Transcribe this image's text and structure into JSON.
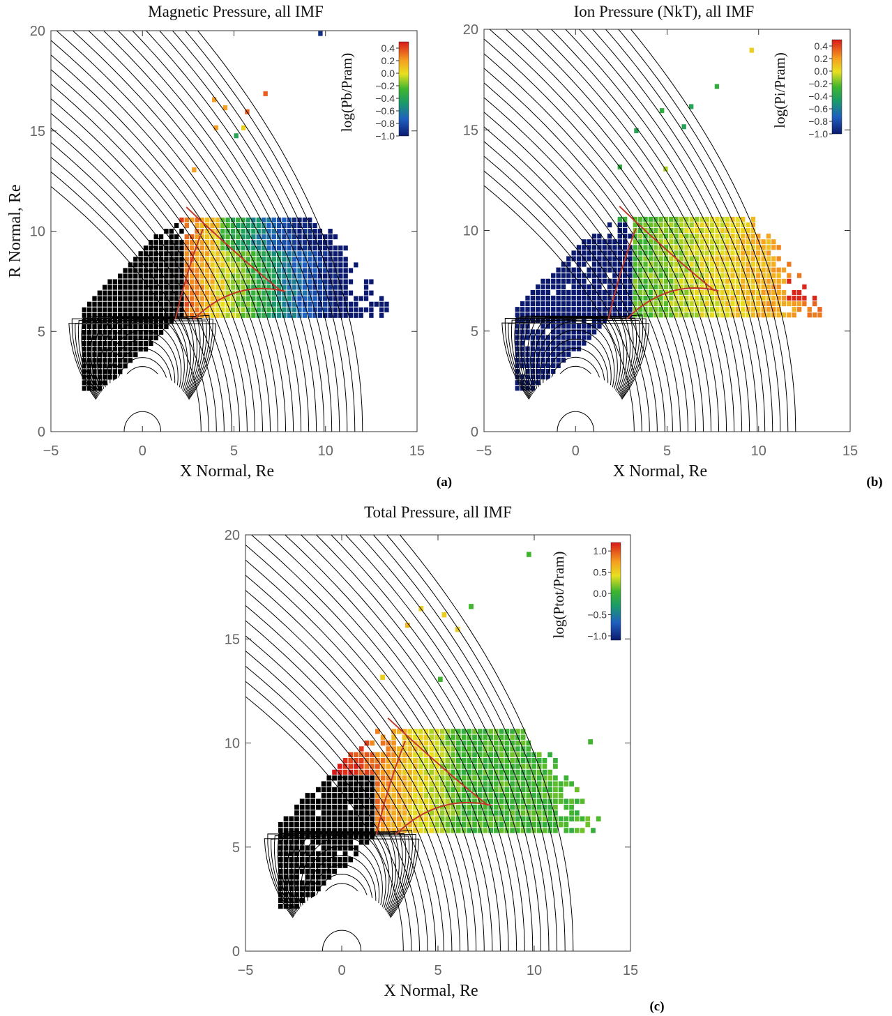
{
  "chart_data": [
    {
      "type": "heatmap",
      "panel": "(a)",
      "title": "Magnetic Pressure, all IMF",
      "xlabel": "X Normal, Re",
      "ylabel": "R Normal, Re",
      "xlim": [
        -5,
        15
      ],
      "ylim": [
        0,
        20
      ],
      "xticks": [
        "-5",
        "0",
        "5",
        "10",
        "15"
      ],
      "yticks": [
        "0",
        "5",
        "10",
        "15",
        "20"
      ],
      "colorbar": {
        "label": "log(Pb/Pram)",
        "range": [
          -1.0,
          0.5
        ],
        "ticks": [
          "0.4",
          "0.2",
          "0.0",
          "-0.2",
          "-0.4",
          "-0.6",
          "-0.8",
          "-1.0"
        ]
      },
      "zones": [
        {
          "name": "black (saturated)",
          "value": "high"
        },
        {
          "name": "red near magnetopause",
          "value": 0.4
        },
        {
          "name": "yellow",
          "value": 0.0
        },
        {
          "name": "green",
          "value": -0.4
        },
        {
          "name": "blue outer",
          "value": -0.9
        }
      ]
    },
    {
      "type": "heatmap",
      "panel": "(b)",
      "title": "Ion Pressure (NkT), all IMF",
      "xlabel": "X Normal, Re",
      "ylabel": "",
      "xlim": [
        -5,
        15
      ],
      "ylim": [
        0,
        20
      ],
      "xticks": [
        "-5",
        "0",
        "5",
        "10",
        "15"
      ],
      "yticks": [
        "0",
        "5",
        "10",
        "15",
        "20"
      ],
      "colorbar": {
        "label": "log(Pi/Pram)",
        "range": [
          -1.0,
          0.5
        ],
        "ticks": [
          "0.4",
          "0.2",
          "0.0",
          "-0.2",
          "-0.4",
          "-0.6",
          "-0.8",
          "-1.0"
        ]
      }
    },
    {
      "type": "heatmap",
      "panel": "(c)",
      "title": "Total Pressure, all IMF",
      "xlabel": "X Normal, Re",
      "ylabel": "",
      "xlim": [
        -5,
        15
      ],
      "ylim": [
        0,
        20
      ],
      "xticks": [
        "-5",
        "0",
        "5",
        "10",
        "15"
      ],
      "yticks": [
        "0",
        "5",
        "10",
        "15",
        "20"
      ],
      "colorbar": {
        "label": "log(Ptot/Pram)",
        "range": [
          -1.1,
          1.2
        ],
        "ticks": [
          "1.0",
          "0.5",
          "0.0",
          "-0.5",
          "-1.0"
        ]
      }
    }
  ]
}
